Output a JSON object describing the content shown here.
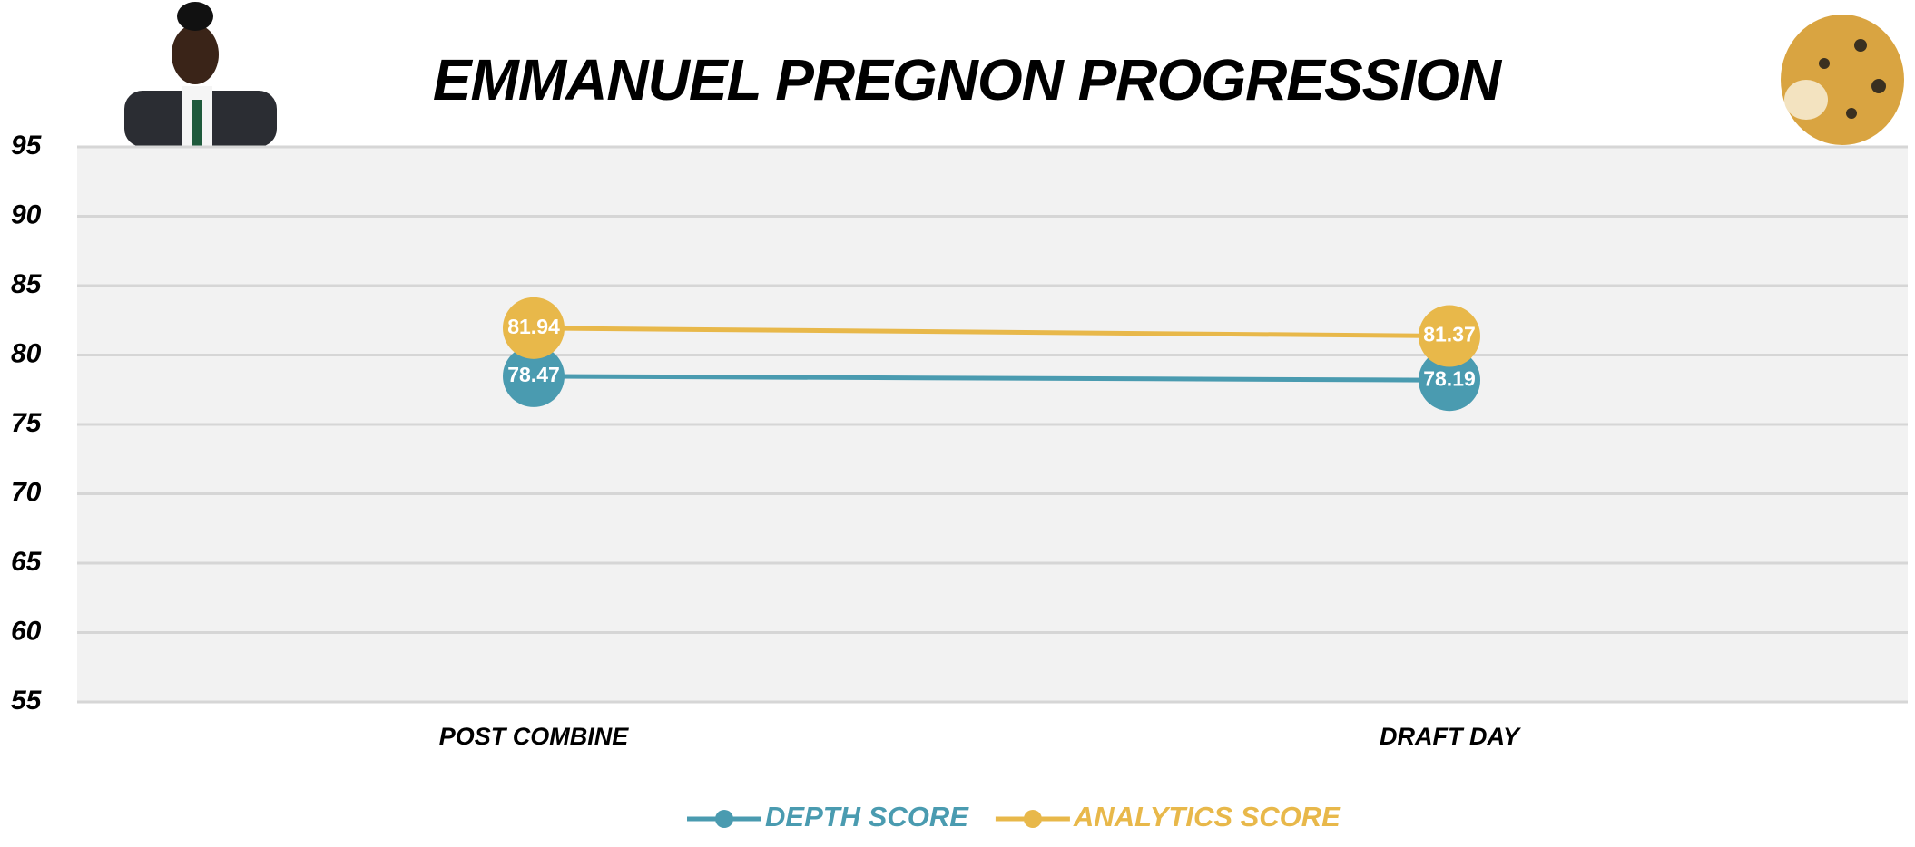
{
  "chart_data": {
    "type": "line",
    "title": "EMMANUEL PREGNON PROGRESSION",
    "categories": [
      "POST COMBINE",
      "DRAFT DAY"
    ],
    "series": [
      {
        "name": "DEPTH SCORE",
        "color": "#4a9bb0",
        "values": [
          78.47,
          78.19
        ]
      },
      {
        "name": "ANALYTICS SCORE",
        "color": "#e8b84a",
        "values": [
          81.94,
          81.37
        ]
      }
    ],
    "ylim": [
      55,
      95
    ],
    "yticks": [
      55,
      60,
      65,
      70,
      75,
      80,
      85,
      90,
      95
    ],
    "grid": true,
    "legend": "bottom"
  }
}
